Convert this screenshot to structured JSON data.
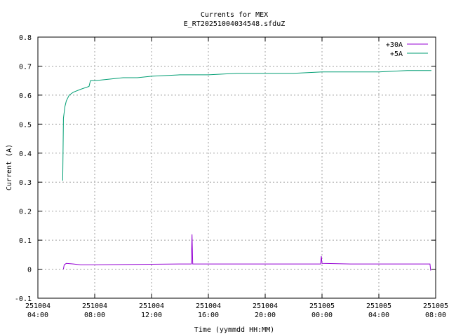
{
  "chart_data": {
    "type": "line",
    "title": "Currents for MEX",
    "subtitle": "E_RT2025100403454​8.sfduZ",
    "xlabel": "Time (yymmdd HH:MM)",
    "ylabel": "Current (A)",
    "ylim": [
      -0.1,
      0.8
    ],
    "yticks": [
      "-0.1",
      "0",
      "0.1",
      "0.2",
      "0.3",
      "0.4",
      "0.5",
      "0.6",
      "0.7",
      "0.8"
    ],
    "xticks": [
      {
        "date": "251004",
        "time": "04:00"
      },
      {
        "date": "251004",
        "time": "08:00"
      },
      {
        "date": "251004",
        "time": "12:00"
      },
      {
        "date": "251004",
        "time": "16:00"
      },
      {
        "date": "251004",
        "time": "20:00"
      },
      {
        "date": "251005",
        "time": "00:00"
      },
      {
        "date": "251005",
        "time": "04:00"
      },
      {
        "date": "251005",
        "time": "08:00"
      }
    ],
    "xlim_hours": [
      4,
      32
    ],
    "grid": true,
    "legend_position": "top-right",
    "series": [
      {
        "name": "+30A",
        "color": "#9400d3",
        "points": [
          [
            5.8,
            0.0
          ],
          [
            5.85,
            0.015
          ],
          [
            6.0,
            0.02
          ],
          [
            6.5,
            0.018
          ],
          [
            7.0,
            0.015
          ],
          [
            8.0,
            0.015
          ],
          [
            10.0,
            0.016
          ],
          [
            12.0,
            0.017
          ],
          [
            14.0,
            0.018
          ],
          [
            14.8,
            0.018
          ],
          [
            14.85,
            0.12
          ],
          [
            14.9,
            0.018
          ],
          [
            16.0,
            0.018
          ],
          [
            18.0,
            0.018
          ],
          [
            20.0,
            0.018
          ],
          [
            22.0,
            0.018
          ],
          [
            23.9,
            0.018
          ],
          [
            23.95,
            0.045
          ],
          [
            24.0,
            0.02
          ],
          [
            26.0,
            0.018
          ],
          [
            28.0,
            0.018
          ],
          [
            30.0,
            0.018
          ],
          [
            31.6,
            0.018
          ],
          [
            31.65,
            -0.005
          ]
        ]
      },
      {
        "name": "+5A",
        "color": "#009e73",
        "points": [
          [
            5.75,
            0.305
          ],
          [
            5.8,
            0.52
          ],
          [
            5.9,
            0.56
          ],
          [
            6.0,
            0.58
          ],
          [
            6.2,
            0.6
          ],
          [
            6.5,
            0.61
          ],
          [
            7.0,
            0.62
          ],
          [
            7.6,
            0.63
          ],
          [
            7.7,
            0.65
          ],
          [
            8.0,
            0.65
          ],
          [
            9.0,
            0.655
          ],
          [
            10.0,
            0.66
          ],
          [
            11.0,
            0.66
          ],
          [
            12.0,
            0.665
          ],
          [
            14.0,
            0.67
          ],
          [
            16.0,
            0.67
          ],
          [
            18.0,
            0.675
          ],
          [
            20.0,
            0.675
          ],
          [
            22.0,
            0.675
          ],
          [
            24.0,
            0.68
          ],
          [
            26.0,
            0.68
          ],
          [
            28.0,
            0.68
          ],
          [
            30.0,
            0.685
          ],
          [
            31.0,
            0.685
          ],
          [
            31.7,
            0.685
          ]
        ]
      }
    ]
  }
}
